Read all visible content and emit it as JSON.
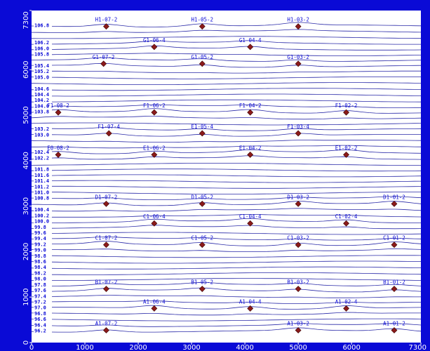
{
  "chart_data": {
    "type": "contour",
    "xlim": [
      0,
      7300
    ],
    "ylim": [
      0,
      7300
    ],
    "x_ticks": [
      0,
      1000,
      2000,
      3000,
      4000,
      5000,
      6000,
      7300
    ],
    "y_ticks": [
      0,
      1000,
      2000,
      3000,
      4000,
      5000,
      6000,
      7300
    ],
    "contour_labels": [
      "106.8",
      "106.2",
      "106.0",
      "105.8",
      "105.4",
      "105.2",
      "105.0",
      "104.6",
      "104.4",
      "104.2",
      "104.0",
      "103.8",
      "103.2",
      "103.0",
      "102.4",
      "102.2",
      "101.8",
      "101.6",
      "101.4",
      "101.2",
      "101.0",
      "100.8",
      "100.4",
      "100.2",
      "100.0",
      "99.8",
      "99.6",
      "99.4",
      "99.2",
      "99.0",
      "98.8",
      "98.6",
      "98.4",
      "98.2",
      "98.0",
      "97.8",
      "97.6",
      "97.4",
      "97.2",
      "97.0",
      "96.8",
      "96.6",
      "96.4",
      "96.2"
    ],
    "contour_levels": [
      106.8,
      106.6,
      106.4,
      106.2,
      106.0,
      105.8,
      105.6,
      105.4,
      105.2,
      105.0,
      104.8,
      104.6,
      104.4,
      104.2,
      104.0,
      103.8,
      103.6,
      103.4,
      103.2,
      103.0,
      102.8,
      102.6,
      102.4,
      102.2,
      102.0,
      101.8,
      101.6,
      101.4,
      101.2,
      101.0,
      100.8,
      100.6,
      100.4,
      100.2,
      100.0,
      99.8,
      99.6,
      99.4,
      99.2,
      99.0,
      98.8,
      98.6,
      98.4,
      98.2,
      98.0,
      97.8,
      97.6,
      97.4,
      97.2,
      97.0,
      96.8,
      96.6,
      96.4,
      96.2
    ],
    "points": [
      {
        "label": "H1-07-2",
        "x": 1400,
        "y": 6950
      },
      {
        "label": "H1-05-2",
        "x": 3200,
        "y": 6950
      },
      {
        "label": "H1-03-2",
        "x": 5000,
        "y": 6950
      },
      {
        "label": "G1-06-4",
        "x": 2300,
        "y": 6500
      },
      {
        "label": "G1-04-4",
        "x": 4100,
        "y": 6500
      },
      {
        "label": "G1-07-2",
        "x": 1350,
        "y": 6130
      },
      {
        "label": "G1-05-2",
        "x": 3200,
        "y": 6130
      },
      {
        "label": "G1-03-2",
        "x": 5000,
        "y": 6130
      },
      {
        "label": "F1-08-2",
        "x": 500,
        "y": 5060
      },
      {
        "label": "F1-06-2",
        "x": 2300,
        "y": 5060
      },
      {
        "label": "F1-04-2",
        "x": 4100,
        "y": 5060
      },
      {
        "label": "F1-02-2",
        "x": 5900,
        "y": 5060
      },
      {
        "label": "F1-07-4",
        "x": 1450,
        "y": 4600
      },
      {
        "label": "E1-05-4",
        "x": 3200,
        "y": 4600
      },
      {
        "label": "F1-03-4",
        "x": 5000,
        "y": 4600
      },
      {
        "label": "E0-08-2",
        "x": 500,
        "y": 4130
      },
      {
        "label": "E1-06-2",
        "x": 2300,
        "y": 4130
      },
      {
        "label": "E1-04-2",
        "x": 4100,
        "y": 4130
      },
      {
        "label": "E1-02-2",
        "x": 5900,
        "y": 4130
      },
      {
        "label": "D1-07-2",
        "x": 1400,
        "y": 3050
      },
      {
        "label": "D1-05-2",
        "x": 3200,
        "y": 3050
      },
      {
        "label": "D1-03-2",
        "x": 5000,
        "y": 3050
      },
      {
        "label": "D1-01-2",
        "x": 6800,
        "y": 3050
      },
      {
        "label": "C1-06-4",
        "x": 2300,
        "y": 2620
      },
      {
        "label": "C1-04-4",
        "x": 4100,
        "y": 2620
      },
      {
        "label": "C1-02-4",
        "x": 5900,
        "y": 2620
      },
      {
        "label": "C1-07-2",
        "x": 1400,
        "y": 2150
      },
      {
        "label": "C1-05-2",
        "x": 3200,
        "y": 2150
      },
      {
        "label": "C1-03-2",
        "x": 5000,
        "y": 2150
      },
      {
        "label": "C1-01-2",
        "x": 6800,
        "y": 2150
      },
      {
        "label": "B1-07-2",
        "x": 1400,
        "y": 1180
      },
      {
        "label": "B1-05-2",
        "x": 3200,
        "y": 1180
      },
      {
        "label": "B1-03-2",
        "x": 5000,
        "y": 1180
      },
      {
        "label": "B1-01-2",
        "x": 6800,
        "y": 1180
      },
      {
        "label": "A1-06-4",
        "x": 2300,
        "y": 750
      },
      {
        "label": "A1-04-4",
        "x": 4100,
        "y": 750
      },
      {
        "label": "A1-02-4",
        "x": 5900,
        "y": 750
      },
      {
        "label": "A1-07-2",
        "x": 1400,
        "y": 270
      },
      {
        "label": "A1-03-2",
        "x": 5000,
        "y": 270
      },
      {
        "label": "A1-01-2",
        "x": 6800,
        "y": 270
      }
    ]
  },
  "colors": {
    "frame": "#0a0ad6",
    "plot_bg": "#ffffff",
    "contour": "#2a2aa8",
    "label": "#0a0ad6",
    "marker": "#8b1a1a"
  }
}
